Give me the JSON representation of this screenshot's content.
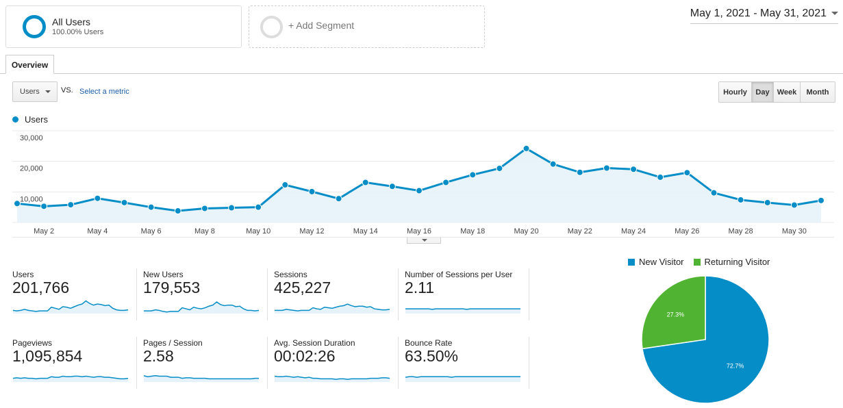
{
  "segments": {
    "active": {
      "name": "All Users",
      "percent": "100.00% Users"
    },
    "add_label": "+ Add Segment"
  },
  "date_range": "May 1, 2021 - May 31, 2021",
  "tabs": [
    "Overview"
  ],
  "controls": {
    "metric": "Users",
    "vs": "VS.",
    "compare": "Select a metric",
    "granularity": [
      "Hourly",
      "Day",
      "Week",
      "Month"
    ],
    "active_granularity": "Day"
  },
  "colors": {
    "primary": "#058dc7",
    "secondary": "#50b432",
    "area_fill": "#e6f2fa",
    "sparkline": "#058dc7"
  },
  "chart_data": [
    {
      "type": "area",
      "series": [
        {
          "name": "Users",
          "values": [
            6200,
            5300,
            5800,
            7900,
            6500,
            5000,
            3800,
            4600,
            4800,
            5000,
            12300,
            10100,
            7800,
            13100,
            11800,
            10400,
            13100,
            15600,
            17700,
            24200,
            19100,
            16400,
            17800,
            17400,
            14800,
            16300,
            9700,
            7400,
            6500,
            5700,
            7200
          ]
        }
      ],
      "x": [
        1,
        2,
        3,
        4,
        5,
        6,
        7,
        8,
        9,
        10,
        11,
        12,
        13,
        14,
        15,
        16,
        17,
        18,
        19,
        20,
        21,
        22,
        23,
        24,
        25,
        26,
        27,
        28,
        29,
        30,
        31
      ],
      "x_tick_labels": [
        "May 2",
        "May 4",
        "May 6",
        "May 8",
        "May 10",
        "May 12",
        "May 14",
        "May 16",
        "May 18",
        "May 20",
        "May 22",
        "May 24",
        "May 26",
        "May 28",
        "May 30"
      ],
      "y_tick_labels": [
        "10,000",
        "20,000",
        "30,000"
      ],
      "ylim": [
        0,
        30000
      ],
      "legend": "top-left",
      "grid": true
    },
    {
      "type": "pie",
      "categories": [
        "New Visitor",
        "Returning Visitor"
      ],
      "values": [
        72.7,
        27.3
      ],
      "labels": [
        "72.7%",
        "27.3%"
      ],
      "legend": "top"
    }
  ],
  "metrics": [
    {
      "label": "Users",
      "value": "201,766",
      "spark": [
        6,
        5,
        6,
        8,
        6,
        5,
        4,
        5,
        5,
        5,
        12,
        10,
        8,
        13,
        12,
        10,
        13,
        16,
        18,
        24,
        19,
        16,
        18,
        17,
        15,
        16,
        10,
        7,
        6,
        6,
        7
      ]
    },
    {
      "label": "New Users",
      "value": "179,553",
      "spark": [
        5,
        5,
        5,
        7,
        6,
        4,
        3,
        4,
        4,
        4,
        11,
        9,
        7,
        12,
        10,
        9,
        11,
        14,
        16,
        22,
        17,
        15,
        16,
        16,
        13,
        14,
        9,
        6,
        6,
        5,
        6
      ]
    },
    {
      "label": "Sessions",
      "value": "425,227",
      "spark": [
        6,
        6,
        6,
        8,
        7,
        6,
        5,
        6,
        6,
        6,
        11,
        9,
        8,
        12,
        11,
        10,
        12,
        14,
        15,
        18,
        15,
        13,
        14,
        14,
        12,
        13,
        9,
        8,
        7,
        7,
        8
      ]
    },
    {
      "label": "Number of Sessions per User",
      "value": "2.11",
      "spark": [
        9,
        9,
        9,
        9,
        9,
        9,
        9,
        8,
        9,
        9,
        9,
        9,
        9,
        9,
        9,
        9,
        8,
        9,
        9,
        9,
        9,
        9,
        9,
        9,
        9,
        9,
        9,
        9,
        9,
        9,
        9
      ]
    },
    {
      "label": "Pageviews",
      "value": "1,095,854",
      "spark": [
        7,
        8,
        7,
        8,
        7,
        7,
        6,
        7,
        7,
        7,
        10,
        9,
        9,
        11,
        10,
        10,
        11,
        11,
        10,
        11,
        10,
        9,
        10,
        10,
        9,
        9,
        8,
        7,
        6,
        6,
        7
      ]
    },
    {
      "label": "Pages / Session",
      "value": "2.58",
      "spark": [
        12,
        10,
        11,
        12,
        11,
        11,
        11,
        9,
        9,
        9,
        7,
        8,
        8,
        7,
        7,
        7,
        7,
        6,
        6,
        6,
        6,
        6,
        6,
        6,
        6,
        6,
        6,
        6,
        6,
        7,
        7
      ]
    },
    {
      "label": "Avg. Session Duration",
      "value": "00:02:26",
      "spark": [
        11,
        10,
        10,
        11,
        10,
        9,
        10,
        9,
        8,
        9,
        7,
        7,
        6,
        6,
        6,
        6,
        5,
        6,
        6,
        5,
        6,
        6,
        6,
        6,
        6,
        7,
        7,
        7,
        8,
        8,
        7
      ]
    },
    {
      "label": "Bounce Rate",
      "value": "63.50%",
      "spark": [
        9,
        10,
        10,
        9,
        10,
        10,
        10,
        10,
        10,
        10,
        10,
        10,
        9,
        10,
        10,
        10,
        10,
        10,
        10,
        10,
        10,
        10,
        10,
        10,
        10,
        10,
        10,
        10,
        10,
        10,
        10
      ]
    }
  ]
}
